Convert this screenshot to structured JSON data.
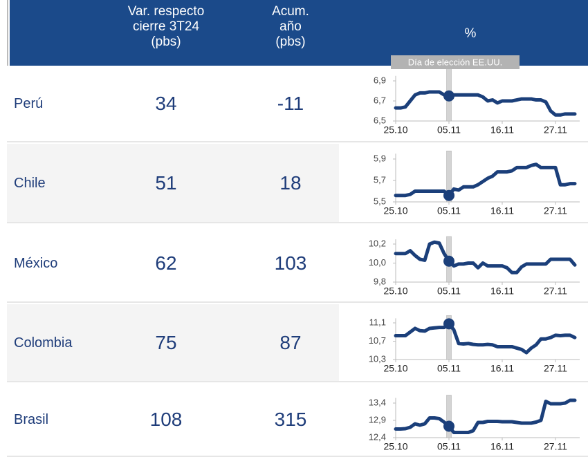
{
  "table": {
    "header": [
      [
        "Var. respecto",
        "cierre 3T24",
        "(pbs)"
      ],
      [
        "Acum.",
        "año",
        "(pbs)"
      ],
      [
        "%"
      ]
    ],
    "rows": [
      {
        "name": "Perú",
        "change": 34,
        "ytd": -11
      },
      {
        "name": "Chile",
        "change": 51,
        "ytd": 18
      },
      {
        "name": "México",
        "change": 62,
        "ytd": 103
      },
      {
        "name": "Colombia",
        "change": 75,
        "ytd": 87
      },
      {
        "name": "Brasil",
        "change": 108,
        "ytd": 315
      }
    ]
  },
  "chart_data": [
    {
      "type": "line",
      "annotation": "Día de elección EE.UU.",
      "event": "05.11",
      "color": "#1b3f7a",
      "categories": [
        "25.10",
        null,
        null,
        null,
        null,
        null,
        null,
        null,
        null,
        null,
        null,
        "05.11",
        null,
        null,
        null,
        null,
        null,
        null,
        null,
        null,
        null,
        null,
        "16.11",
        null,
        null,
        null,
        null,
        null,
        null,
        null,
        null,
        null,
        null,
        "27.11",
        null,
        null,
        null,
        null
      ],
      "values": [
        6.63,
        6.63,
        6.64,
        6.7,
        6.76,
        6.78,
        6.78,
        6.79,
        6.79,
        6.79,
        6.76,
        6.75,
        6.76,
        6.76,
        6.76,
        6.76,
        6.76,
        6.76,
        6.74,
        6.7,
        6.71,
        6.68,
        6.7,
        6.7,
        6.7,
        6.71,
        6.72,
        6.72,
        6.72,
        6.71,
        6.71,
        6.69,
        6.6,
        6.56,
        6.56,
        6.57,
        6.57,
        6.57
      ],
      "ylim": [
        6.5,
        6.95
      ],
      "yticks": [
        {
          "value": 6.5,
          "label": "6,5"
        },
        {
          "value": 6.7,
          "label": "6,7"
        },
        {
          "value": 6.9,
          "label": "6,9"
        }
      ]
    },
    {
      "type": "line",
      "event": "05.11",
      "color": "#1b3f7a",
      "categories": [
        "25.10",
        null,
        null,
        null,
        null,
        null,
        null,
        null,
        null,
        null,
        null,
        "05.11",
        null,
        null,
        null,
        null,
        null,
        null,
        null,
        null,
        null,
        null,
        "16.11",
        null,
        null,
        null,
        null,
        null,
        null,
        null,
        null,
        null,
        null,
        "27.11",
        null,
        null,
        null,
        null
      ],
      "values": [
        5.56,
        5.56,
        5.56,
        5.57,
        5.6,
        5.6,
        5.6,
        5.6,
        5.6,
        5.6,
        5.6,
        5.56,
        5.62,
        5.61,
        5.64,
        5.64,
        5.64,
        5.66,
        5.69,
        5.72,
        5.74,
        5.78,
        5.78,
        5.78,
        5.79,
        5.82,
        5.82,
        5.82,
        5.84,
        5.85,
        5.82,
        5.82,
        5.82,
        5.82,
        5.66,
        5.66,
        5.67,
        5.67
      ],
      "ylim": [
        5.5,
        5.95
      ],
      "yticks": [
        {
          "value": 5.5,
          "label": "5,5"
        },
        {
          "value": 5.7,
          "label": "5,7"
        },
        {
          "value": 5.9,
          "label": "5,9"
        }
      ]
    },
    {
      "type": "line",
      "event": "05.11",
      "color": "#1b3f7a",
      "categories": [
        "25.10",
        null,
        null,
        null,
        null,
        null,
        null,
        null,
        null,
        null,
        null,
        "05.11",
        null,
        null,
        null,
        null,
        null,
        null,
        null,
        null,
        null,
        null,
        "16.11",
        null,
        null,
        null,
        null,
        null,
        null,
        null,
        null,
        null,
        null,
        "27.11",
        null,
        null,
        null,
        null
      ],
      "values": [
        10.1,
        10.1,
        10.1,
        10.13,
        10.08,
        10.04,
        10.03,
        10.2,
        10.22,
        10.21,
        10.1,
        10.02,
        9.97,
        9.99,
        9.99,
        10.0,
        10.0,
        9.95,
        10.0,
        9.97,
        9.97,
        9.97,
        9.97,
        9.95,
        9.9,
        9.9,
        9.96,
        9.99,
        9.99,
        9.99,
        9.99,
        9.99,
        10.04,
        10.04,
        10.04,
        10.04,
        10.04,
        9.98
      ],
      "ylim": [
        9.8,
        10.25
      ],
      "yticks": [
        {
          "value": 9.8,
          "label": "9,8"
        },
        {
          "value": 10.0,
          "label": "10,0"
        },
        {
          "value": 10.2,
          "label": "10,2"
        }
      ]
    },
    {
      "type": "line",
      "event": "05.11",
      "color": "#1b3f7a",
      "categories": [
        "25.10",
        null,
        null,
        null,
        null,
        null,
        null,
        null,
        null,
        null,
        null,
        "05.11",
        null,
        null,
        null,
        null,
        null,
        null,
        null,
        null,
        null,
        null,
        "16.11",
        null,
        null,
        null,
        null,
        null,
        null,
        null,
        null,
        null,
        null,
        "27.11",
        null,
        null,
        null,
        null
      ],
      "values": [
        10.82,
        10.82,
        10.82,
        10.9,
        10.98,
        10.93,
        10.92,
        10.98,
        10.99,
        11.0,
        11.0,
        11.08,
        10.95,
        10.65,
        10.64,
        10.65,
        10.63,
        10.62,
        10.62,
        10.63,
        10.62,
        10.58,
        10.58,
        10.58,
        10.58,
        10.55,
        10.52,
        10.45,
        10.55,
        10.62,
        10.75,
        10.75,
        10.78,
        10.83,
        10.82,
        10.83,
        10.83,
        10.78
      ],
      "ylim": [
        10.3,
        11.2
      ],
      "yticks": [
        {
          "value": 10.3,
          "label": "10,3"
        },
        {
          "value": 10.7,
          "label": "10,7"
        },
        {
          "value": 11.1,
          "label": "11,1"
        }
      ]
    },
    {
      "type": "line",
      "event": "05.11",
      "color": "#1b3f7a",
      "categories": [
        "25.10",
        null,
        null,
        null,
        null,
        null,
        null,
        null,
        null,
        null,
        null,
        "05.11",
        null,
        null,
        null,
        null,
        null,
        null,
        null,
        null,
        null,
        null,
        "16.11",
        null,
        null,
        null,
        null,
        null,
        null,
        null,
        null,
        null,
        null,
        "27.11",
        null,
        null,
        null,
        null
      ],
      "values": [
        12.65,
        12.65,
        12.66,
        12.7,
        12.8,
        12.76,
        12.8,
        12.97,
        12.97,
        12.95,
        12.85,
        12.73,
        12.55,
        12.55,
        12.55,
        12.55,
        12.6,
        12.84,
        12.84,
        12.87,
        12.87,
        12.87,
        12.86,
        12.86,
        12.86,
        12.84,
        12.82,
        12.82,
        12.82,
        12.85,
        12.9,
        13.45,
        13.38,
        13.38,
        13.38,
        13.4,
        13.48,
        13.48
      ],
      "ylim": [
        12.4,
        13.55
      ],
      "yticks": [
        {
          "value": 12.4,
          "label": "12,4"
        },
        {
          "value": 12.9,
          "label": "12,9"
        },
        {
          "value": 13.4,
          "label": "13,4"
        }
      ]
    }
  ]
}
